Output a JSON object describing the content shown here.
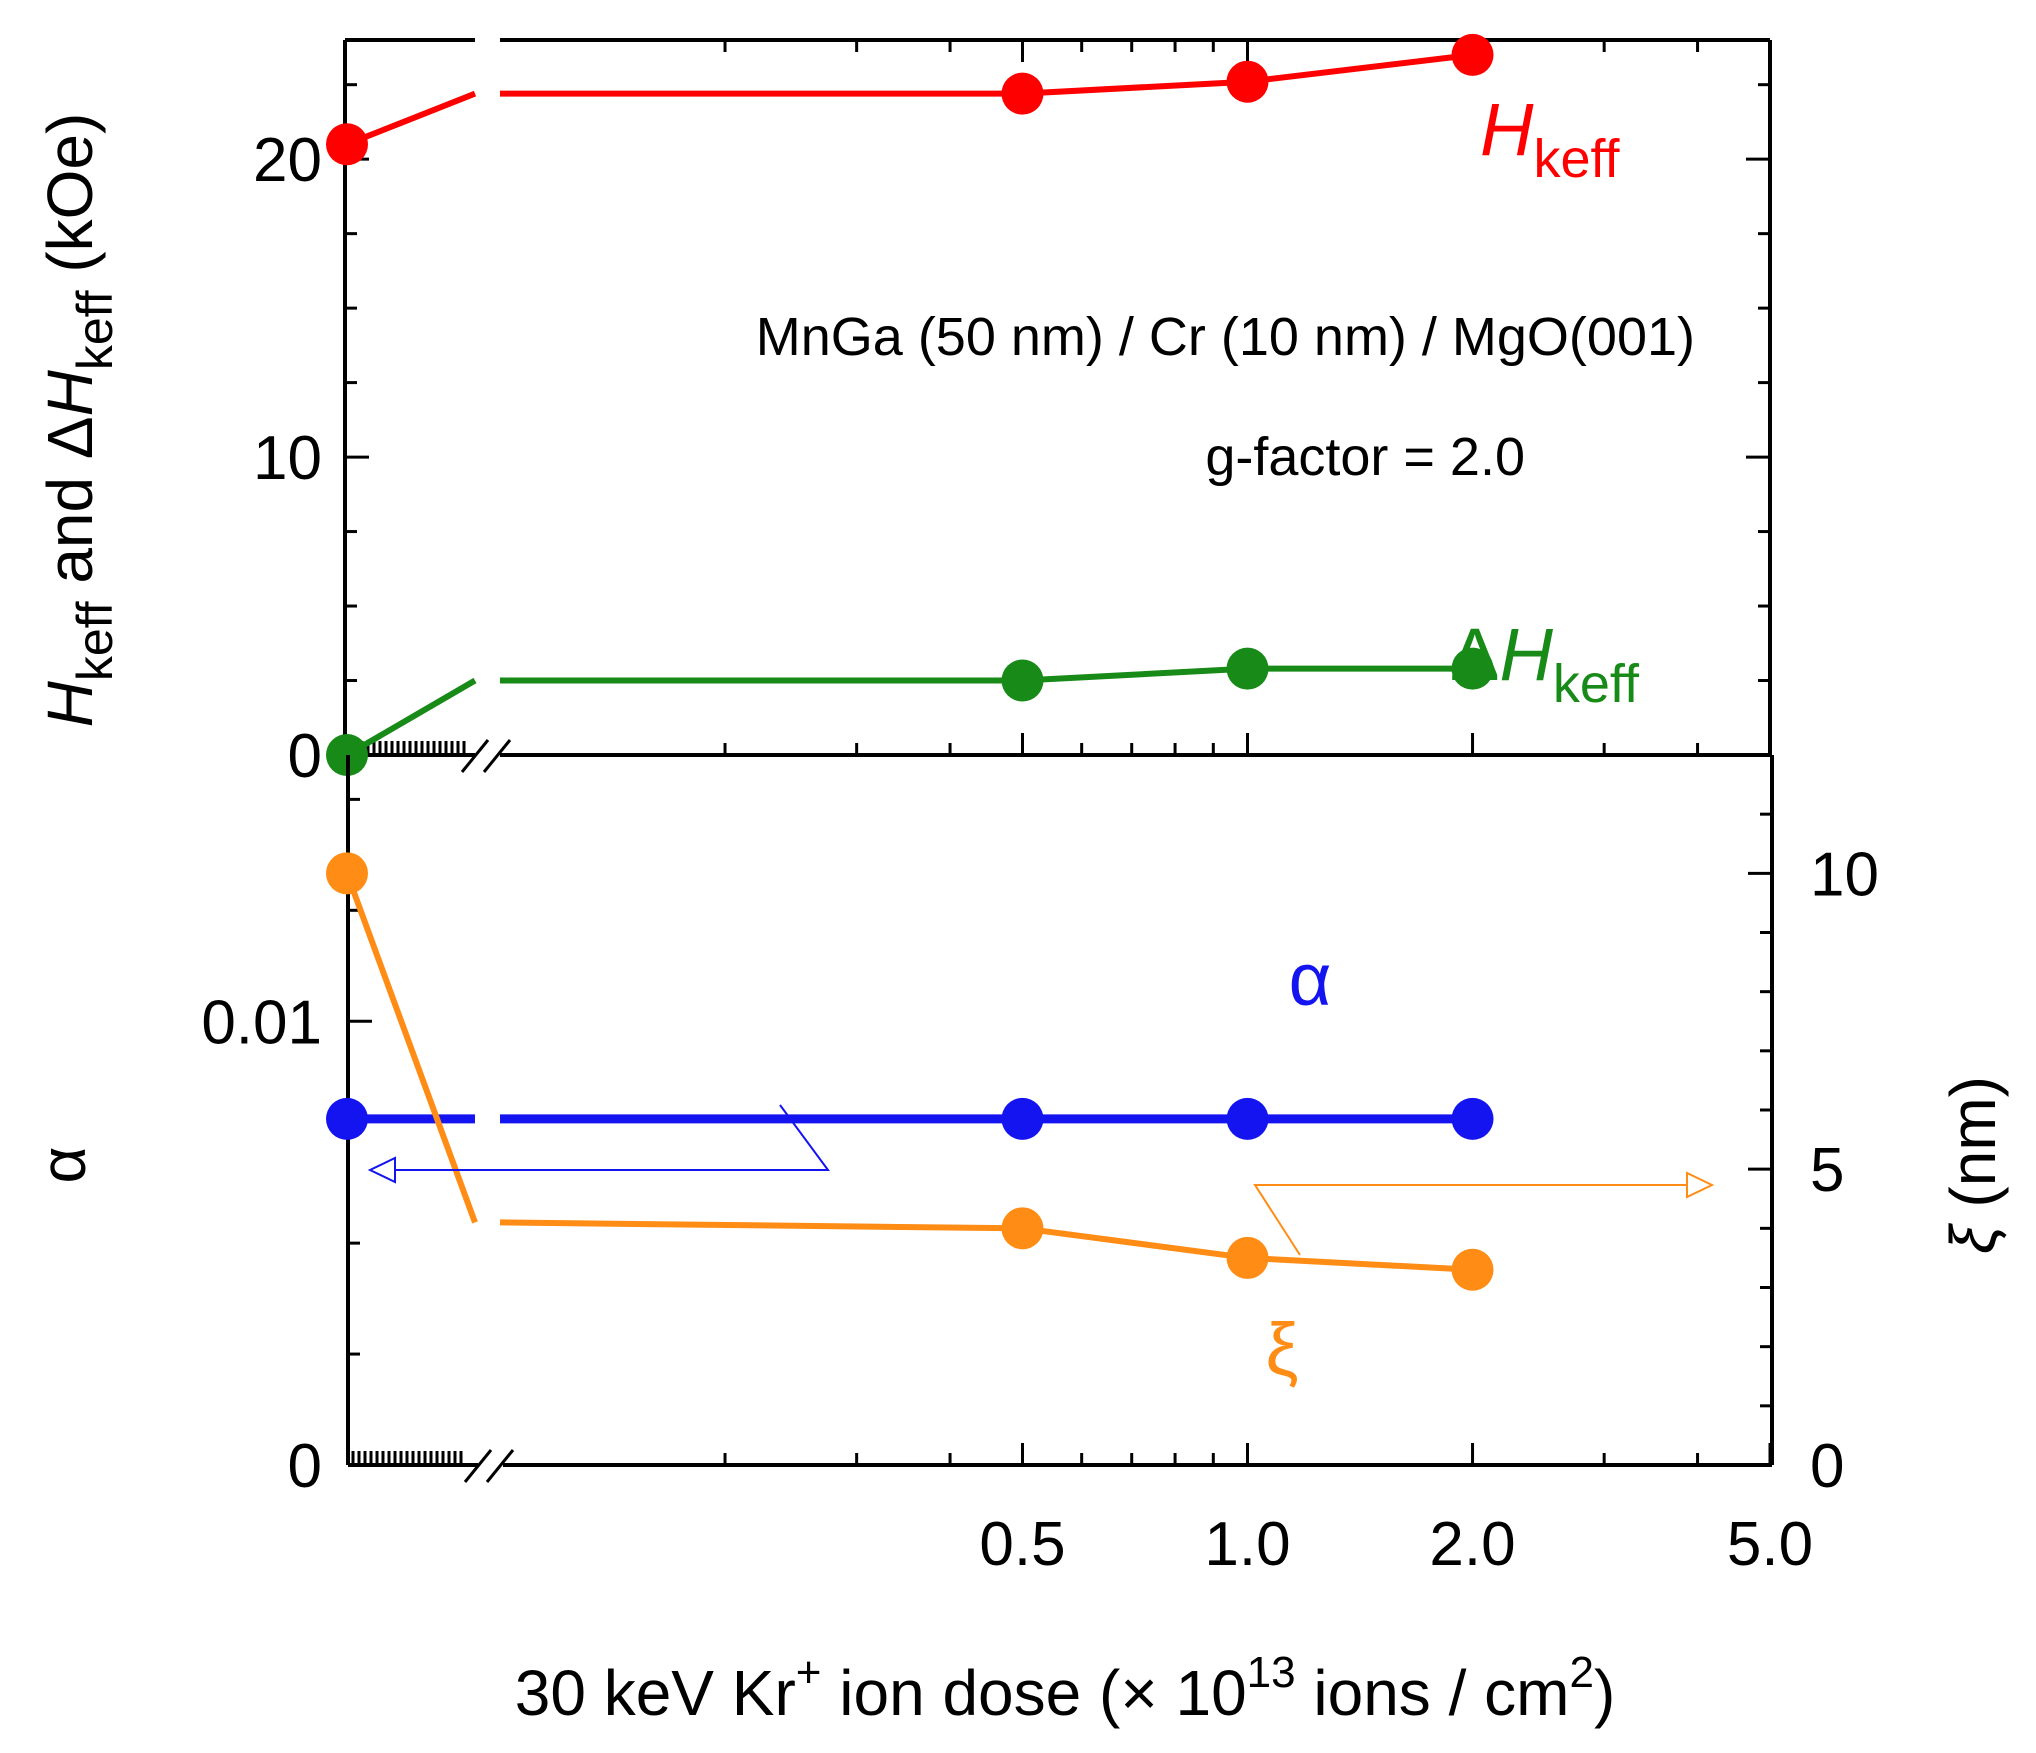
{
  "chart_data": [
    {
      "panel": "top",
      "type": "line",
      "title": "",
      "ylabel": {
        "H": "H",
        "keff": "keff",
        "and": " and ",
        "delta": "Δ",
        "unit": " (kOe)"
      },
      "ylim": [
        0,
        24
      ],
      "yticks": [
        0,
        10,
        20
      ],
      "ytick_labels": [
        "0",
        "10",
        "20"
      ],
      "x_log_range": [
        0.1,
        5
      ],
      "annotations": [
        "MnGa (50 nm) / Cr (10 nm) / MgO(001)",
        "g-factor = 2.0"
      ],
      "series": [
        {
          "key": "hkeff",
          "name": "H",
          "sub": "keff",
          "prefix": "",
          "color": "#ff0000",
          "origin": 20.5,
          "break_end": 22.2,
          "x": [
            0.5,
            1.0,
            2.0
          ],
          "values": [
            22.2,
            22.6,
            23.5
          ]
        },
        {
          "key": "dhkeff",
          "name": "H",
          "sub": "keff",
          "prefix": "Δ",
          "color": "#178a17",
          "origin": 0.0,
          "break_end": 2.5,
          "x": [
            0.5,
            1.0,
            2.0
          ],
          "values": [
            2.5,
            2.9,
            2.9
          ]
        }
      ]
    },
    {
      "panel": "bottom",
      "type": "line",
      "xlabel": {
        "text1": "30 keV Kr",
        "sup1": "+",
        "text2": " ion dose (× 10",
        "sup2": "13",
        "text3": " ions / cm",
        "sup3": "2",
        "text4": ")"
      },
      "xticks": [
        0.5,
        1.0,
        2.0,
        5.0
      ],
      "xtick_labels": [
        "0.5",
        "1.0",
        "2.0",
        "5.0"
      ],
      "ylabel_left": "α",
      "ylim_left": [
        0,
        0.016
      ],
      "yticks_left": [
        0,
        0.01
      ],
      "ytick_labels_left": [
        "0",
        "0.01"
      ],
      "ylabel_right": {
        "symbol": "ξ",
        "unit": " (nm)"
      },
      "ylim_right": [
        0,
        12
      ],
      "yticks_right": [
        0,
        5,
        10
      ],
      "ytick_labels_right": [
        "0",
        "5",
        "10"
      ],
      "series": [
        {
          "key": "alpha",
          "name": "α",
          "axis": "left",
          "color": "#1414f0",
          "origin": 0.0078,
          "break_end": 0.0078,
          "x": [
            0.5,
            1.0,
            2.0
          ],
          "values": [
            0.0078,
            0.0078,
            0.0078
          ]
        },
        {
          "key": "xi",
          "name": "ξ",
          "axis": "right",
          "color": "#ff8c14",
          "origin": 10.0,
          "break_end": 4.1,
          "x": [
            0.5,
            1.0,
            2.0
          ],
          "values": [
            4.0,
            3.5,
            3.3
          ]
        }
      ]
    }
  ]
}
